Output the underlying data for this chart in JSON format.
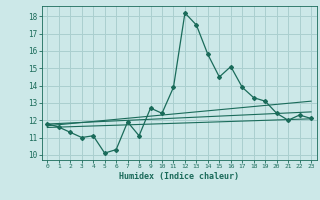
{
  "xlabel": "Humidex (Indice chaleur)",
  "bg_color": "#cce8e8",
  "grid_color": "#aacfcf",
  "line_color": "#1a6b5a",
  "xlim": [
    -0.5,
    23.5
  ],
  "ylim": [
    9.7,
    18.6
  ],
  "xticks": [
    0,
    1,
    2,
    3,
    4,
    5,
    6,
    7,
    8,
    9,
    10,
    11,
    12,
    13,
    14,
    15,
    16,
    17,
    18,
    19,
    20,
    21,
    22,
    23
  ],
  "yticks": [
    10,
    11,
    12,
    13,
    14,
    15,
    16,
    17,
    18
  ],
  "main_x": [
    0,
    1,
    2,
    3,
    4,
    5,
    6,
    7,
    8,
    9,
    10,
    11,
    12,
    13,
    14,
    15,
    16,
    17,
    18,
    19,
    20,
    21,
    22,
    23
  ],
  "main_y": [
    11.8,
    11.6,
    11.3,
    11.0,
    11.1,
    10.1,
    10.3,
    11.9,
    11.1,
    12.7,
    12.4,
    13.9,
    18.2,
    17.5,
    15.8,
    14.5,
    15.1,
    13.9,
    13.3,
    13.1,
    12.4,
    12.0,
    12.3,
    12.1
  ],
  "trend1_x": [
    0,
    23
  ],
  "trend1_y": [
    11.78,
    12.48
  ],
  "trend2_x": [
    0,
    23
  ],
  "trend2_y": [
    11.68,
    13.1
  ],
  "trend3_x": [
    0,
    23
  ],
  "trend3_y": [
    11.58,
    12.08
  ]
}
